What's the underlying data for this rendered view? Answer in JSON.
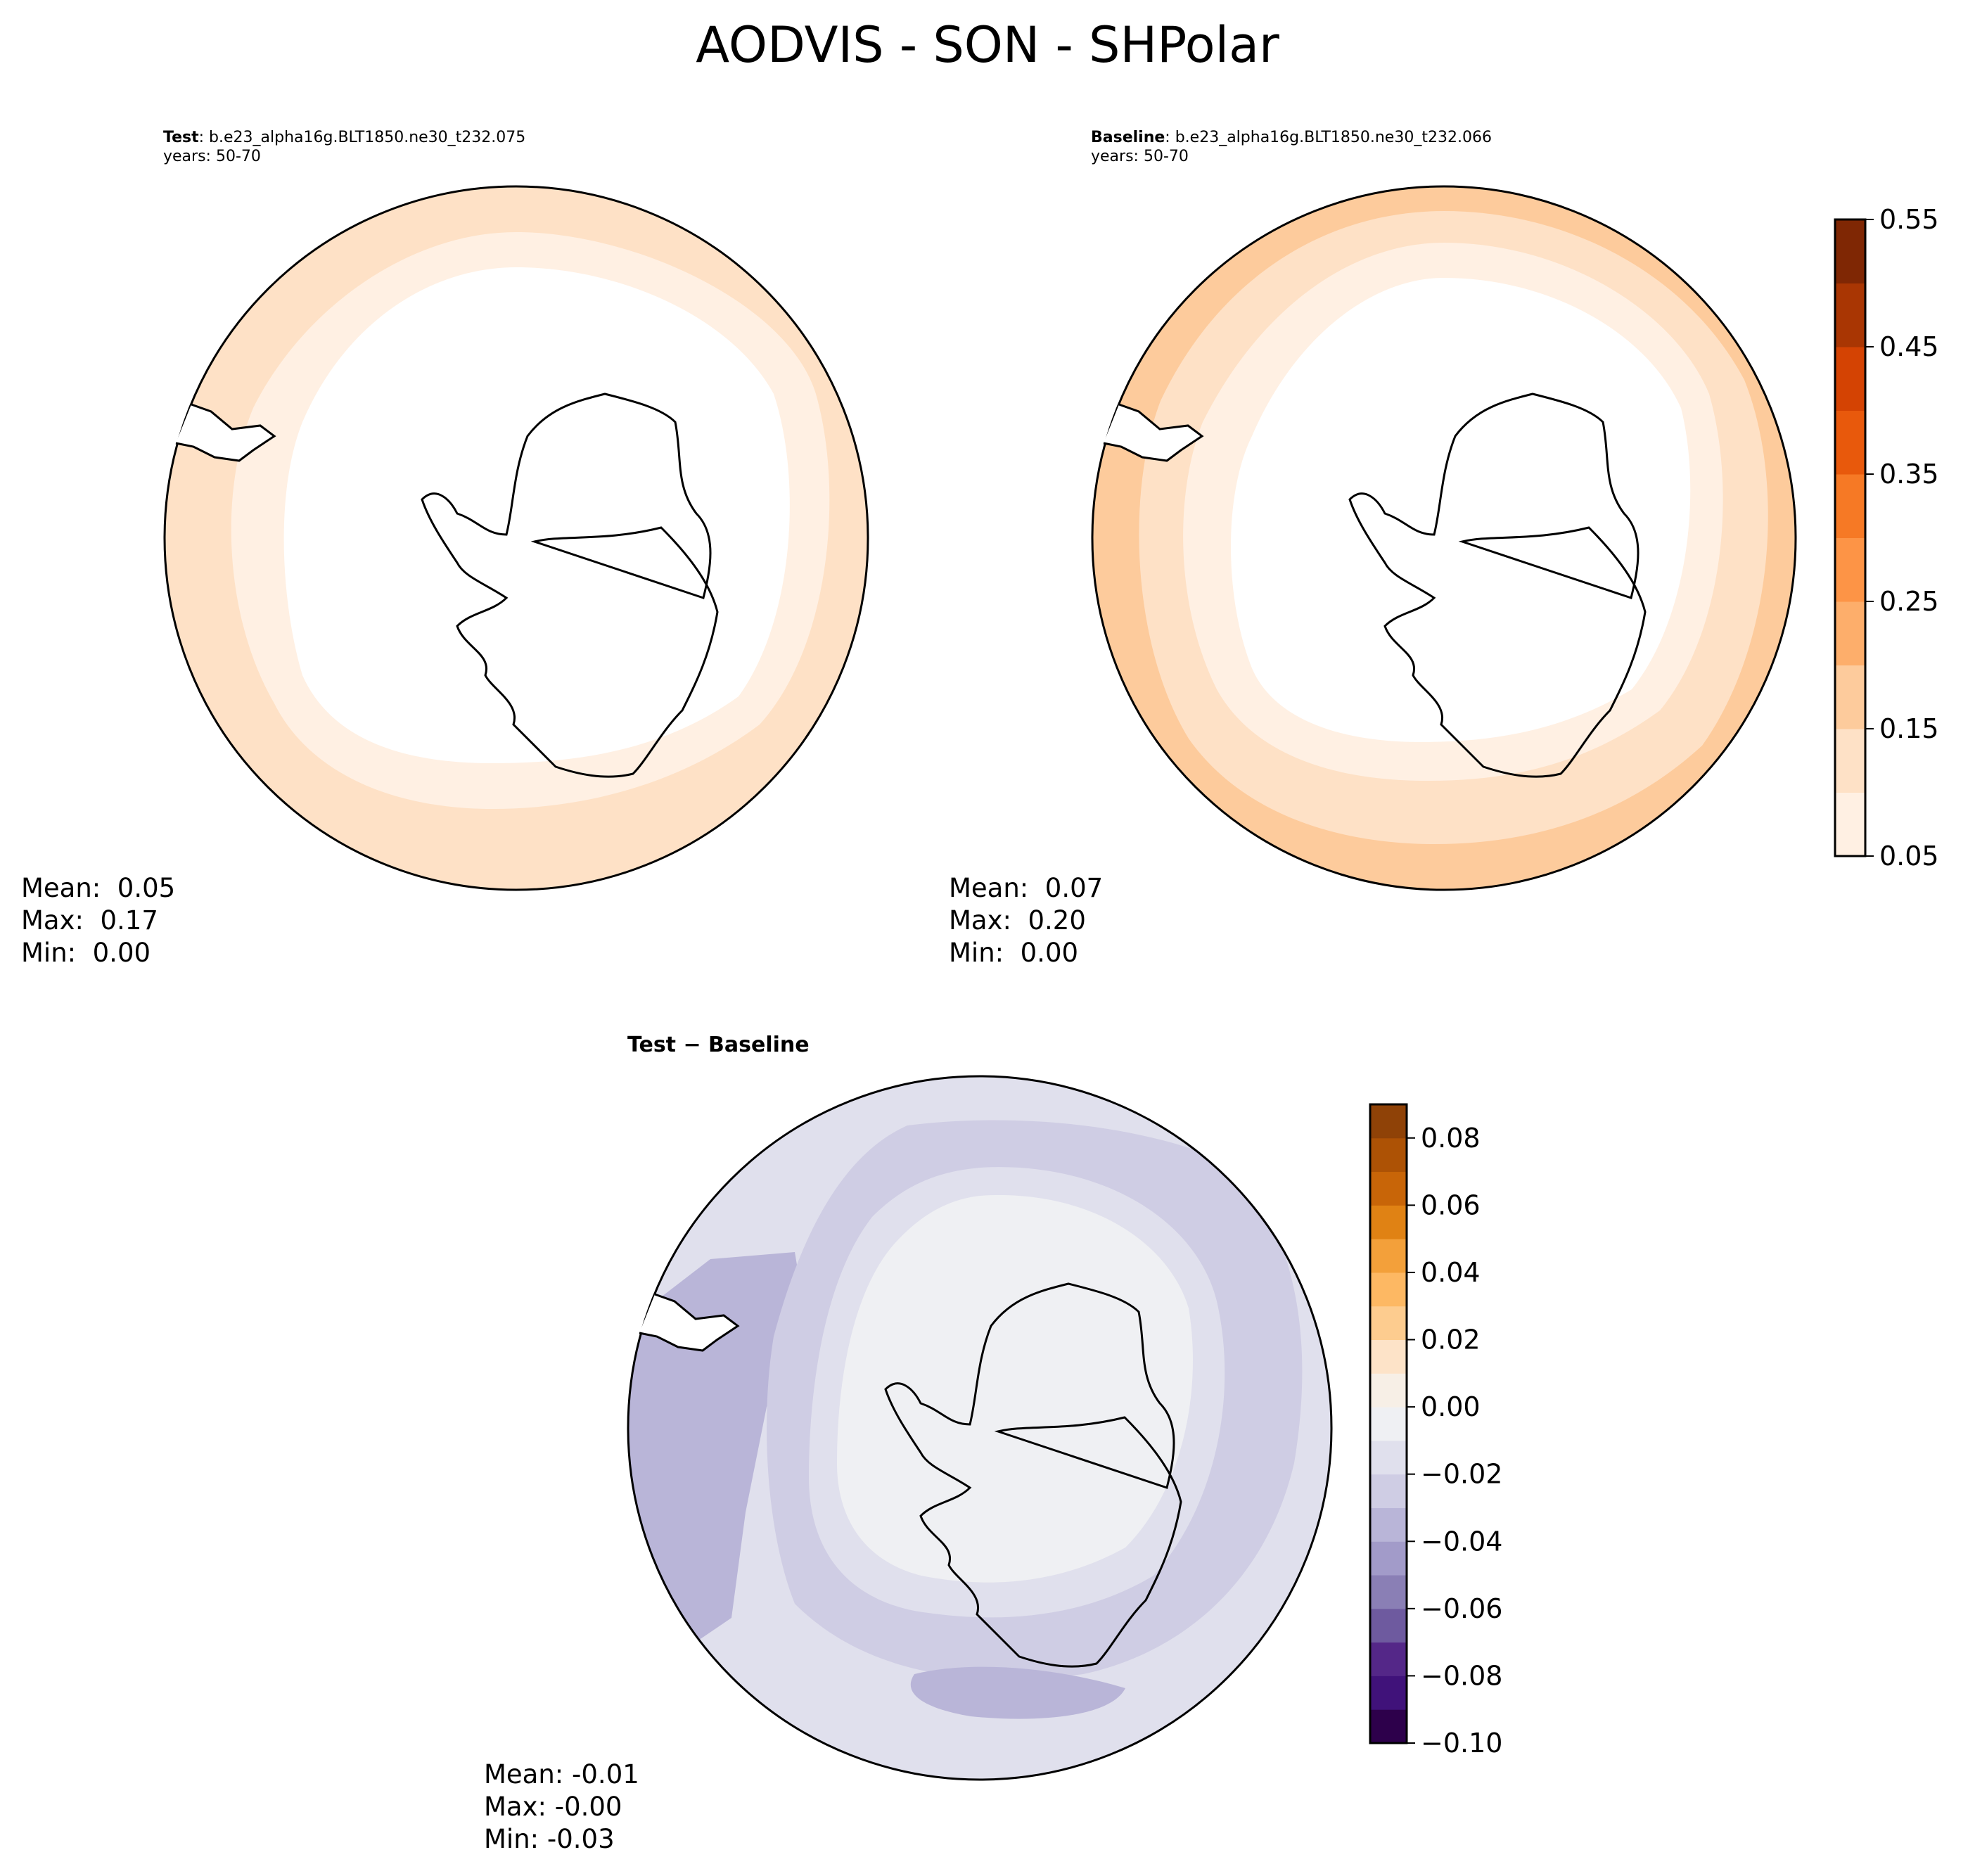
{
  "title": "AODVIS - SON - SHPolar",
  "panels": {
    "test": {
      "label": "Test",
      "case": ": b.e23_alpha16g.BLT1850.ne30_t232.075",
      "years": "years: 50-70",
      "stats": {
        "mean": "Mean:  0.05",
        "max": "Max:  0.17",
        "min": "Min:  0.00"
      }
    },
    "baseline": {
      "label": "Baseline",
      "case": ": b.e23_alpha16g.BLT1850.ne30_t232.066",
      "years": "years: 50-70",
      "stats": {
        "mean": "Mean:  0.07",
        "max": "Max:  0.20",
        "min": "Min:  0.00"
      }
    },
    "diff": {
      "label": "Test − Baseline",
      "stats": {
        "mean": "Mean: -0.01",
        "max": "Max: -0.00",
        "min": "Min: -0.03"
      }
    }
  },
  "chart_data": [
    {
      "type": "heatmap",
      "projection": "south-polar-stereographic",
      "title": "Test",
      "colormap": "Oranges",
      "levels": [
        0.05,
        0.1,
        0.15,
        0.2,
        0.25,
        0.3,
        0.35,
        0.4,
        0.45,
        0.5,
        0.55
      ],
      "band_values_from_outer_to_pole": [
        0.15,
        0.1,
        0.05
      ],
      "mean": 0.05,
      "max": 0.17,
      "min": 0.0
    },
    {
      "type": "heatmap",
      "projection": "south-polar-stereographic",
      "title": "Baseline",
      "colormap": "Oranges",
      "levels": [
        0.05,
        0.1,
        0.15,
        0.2,
        0.25,
        0.3,
        0.35,
        0.4,
        0.45,
        0.5,
        0.55
      ],
      "band_values_from_outer_to_pole": [
        0.2,
        0.15,
        0.1,
        0.05
      ],
      "mean": 0.07,
      "max": 0.2,
      "min": 0.0
    },
    {
      "type": "heatmap",
      "projection": "south-polar-stereographic",
      "title": "Test − Baseline",
      "colormap": "PuOr",
      "levels": [
        -0.1,
        -0.09,
        -0.08,
        -0.07,
        -0.06,
        -0.05,
        -0.04,
        -0.03,
        -0.02,
        -0.01,
        0.0,
        0.01,
        0.02,
        0.03,
        0.04,
        0.05,
        0.06,
        0.07,
        0.08,
        0.09
      ],
      "band_values_from_outer_to_pole": [
        -0.04,
        -0.02,
        -0.01,
        0.0
      ],
      "mean": -0.01,
      "max": -0.0,
      "min": -0.03
    }
  ],
  "colorbars": {
    "top": {
      "ticks": [
        "0.05",
        "0.15",
        "0.25",
        "0.35",
        "0.45",
        "0.55"
      ],
      "colors": [
        "#fff0e3",
        "#fee1c6",
        "#fdcb9c",
        "#fdae6b",
        "#fd9446",
        "#f67925",
        "#e8590c",
        "#d44303",
        "#a93603",
        "#7f2704"
      ]
    },
    "bottom": {
      "ticks": [
        "−0.10",
        "−0.08",
        "−0.06",
        "−0.04",
        "−0.02",
        "0.00",
        "0.02",
        "0.04",
        "0.06",
        "0.08"
      ],
      "colors": [
        "#2d004b",
        "#40127a",
        "#542788",
        "#6e5a9f",
        "#8a7fb5",
        "#a29bc9",
        "#b9b5d8",
        "#cfcde4",
        "#e0e0ed",
        "#eff0f3",
        "#f7efe6",
        "#fde3c8",
        "#fdcc8f",
        "#fdb863",
        "#f3a03a",
        "#e08214",
        "#c86508",
        "#ad5205",
        "#8f4207"
      ]
    }
  }
}
